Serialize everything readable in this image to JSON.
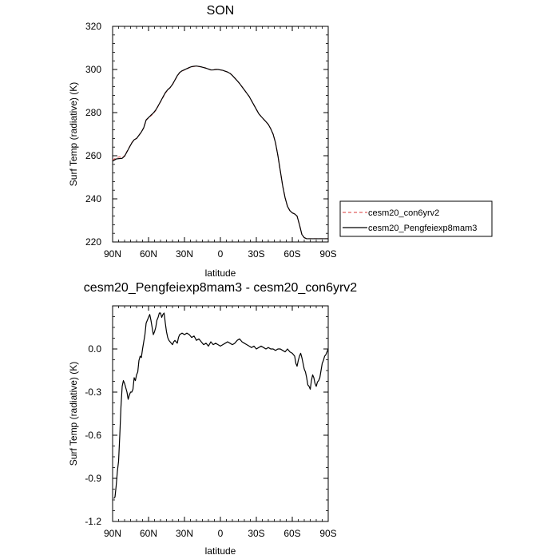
{
  "chart_data": [
    {
      "type": "line",
      "title": "SON",
      "xlabel": "latitude",
      "ylabel": "Surf Temp (radiative) (K)",
      "xlim": [
        90,
        -90
      ],
      "ylim": [
        220,
        320
      ],
      "xtick_values": [
        90,
        60,
        30,
        0,
        -30,
        -60,
        -90
      ],
      "xtick_labels": [
        "90N",
        "60N",
        "30N",
        "0",
        "30S",
        "60S",
        "90S"
      ],
      "ytick_values": [
        220,
        240,
        260,
        280,
        300,
        320
      ],
      "ytick_labels": [
        "220",
        "240",
        "260",
        "280",
        "300",
        "320"
      ],
      "legend": {
        "position": "right"
      },
      "series": [
        {
          "name": "cesm20_con6yrv2",
          "color": "#e06060",
          "style": "dashed",
          "x": [
            90,
            87,
            84,
            82,
            80,
            78,
            76,
            74,
            72,
            70,
            68,
            66,
            64,
            62,
            60,
            58,
            56,
            54,
            52,
            50,
            48,
            46,
            44,
            42,
            40,
            38,
            36,
            34,
            32,
            30,
            28,
            26,
            24,
            22,
            20,
            18,
            16,
            14,
            12,
            10,
            8,
            6,
            4,
            2,
            0,
            -2,
            -4,
            -6,
            -8,
            -10,
            -12,
            -14,
            -16,
            -18,
            -20,
            -22,
            -24,
            -26,
            -28,
            -30,
            -32,
            -34,
            -36,
            -38,
            -40,
            -42,
            -44,
            -46,
            -48,
            -50,
            -52,
            -54,
            -56,
            -58,
            -60,
            -62,
            -64,
            -66,
            -68,
            -70,
            -72,
            -74,
            -76,
            -78,
            -80,
            -82,
            -84,
            -86,
            -88,
            -90
          ],
          "y": [
            258,
            259,
            259.5,
            259,
            260,
            262,
            264,
            266,
            267.5,
            268,
            269.5,
            271,
            273,
            276.5,
            277.5,
            278.5,
            279.5,
            281,
            283,
            285,
            287,
            289,
            290.5,
            291.5,
            293,
            295,
            297,
            298.5,
            299.3,
            299.8,
            300.3,
            300.8,
            301.2,
            301.4,
            301.5,
            301.4,
            301.2,
            300.9,
            300.6,
            300.2,
            299.8,
            299.8,
            300,
            300,
            299.8,
            299.6,
            299.2,
            298.8,
            298.2,
            297.2,
            296,
            294.8,
            293.5,
            292,
            290.5,
            289,
            287.5,
            285.5,
            283.5,
            281.5,
            279.5,
            278.2,
            277,
            275.8,
            274.5,
            272.5,
            270,
            266,
            260,
            253,
            246,
            240.5,
            236.5,
            234.5,
            233.5,
            233,
            232,
            228,
            223.5,
            222,
            221.5,
            221.5,
            221.5,
            221.5,
            221.5,
            221.5,
            221.5,
            221.5,
            221.5,
            221.5
          ]
        },
        {
          "name": "cesm20_Pengfeiexp8mam3",
          "color": "#000000",
          "style": "solid",
          "x": [
            90,
            87,
            84,
            82,
            80,
            78,
            76,
            74,
            72,
            70,
            68,
            66,
            64,
            62,
            60,
            58,
            56,
            54,
            52,
            50,
            48,
            46,
            44,
            42,
            40,
            38,
            36,
            34,
            32,
            30,
            28,
            26,
            24,
            22,
            20,
            18,
            16,
            14,
            12,
            10,
            8,
            6,
            4,
            2,
            0,
            -2,
            -4,
            -6,
            -8,
            -10,
            -12,
            -14,
            -16,
            -18,
            -20,
            -22,
            -24,
            -26,
            -28,
            -30,
            -32,
            -34,
            -36,
            -38,
            -40,
            -42,
            -44,
            -46,
            -48,
            -50,
            -52,
            -54,
            -56,
            -58,
            -60,
            -62,
            -64,
            -66,
            -68,
            -70,
            -72,
            -74,
            -76,
            -78,
            -80,
            -82,
            -84,
            -86,
            -88,
            -90
          ],
          "y": [
            257.5,
            258.5,
            258.7,
            258.8,
            259.8,
            261.8,
            263.9,
            265.9,
            267.4,
            268,
            269.5,
            271,
            273,
            276.6,
            277.7,
            278.8,
            279.8,
            281.2,
            283.1,
            285.1,
            287.2,
            289.2,
            290.6,
            291.6,
            293.1,
            295.1,
            297.1,
            298.6,
            299.4,
            299.9,
            300.4,
            300.9,
            301.3,
            301.5,
            301.6,
            301.4,
            301.2,
            300.9,
            300.6,
            300.2,
            299.8,
            299.8,
            300,
            300,
            299.8,
            299.6,
            299.2,
            298.8,
            298.2,
            297.2,
            296,
            294.8,
            293.5,
            292,
            290.5,
            289,
            287.5,
            285.5,
            283.5,
            281.5,
            279.5,
            278.2,
            277,
            275.8,
            274.5,
            272.5,
            270,
            266,
            260,
            253,
            246,
            240.5,
            236.5,
            234.5,
            233.5,
            233,
            232,
            228,
            223.5,
            222,
            221.5,
            221.5,
            221.5,
            221.5,
            221.5,
            221.5,
            221.5,
            221.5,
            221.5,
            221.5
          ]
        }
      ]
    },
    {
      "type": "line",
      "title": "cesm20_Pengfeiexp8mam3 - cesm20_con6yrv2",
      "xlabel": "latitude",
      "ylabel": "Surf Temp (radiative) (K)",
      "xlim": [
        90,
        -90
      ],
      "ylim": [
        -1.2,
        0.3
      ],
      "xtick_values": [
        90,
        60,
        30,
        0,
        -30,
        -60,
        -90
      ],
      "xtick_labels": [
        "90N",
        "60N",
        "30N",
        "0",
        "30S",
        "60S",
        "90S"
      ],
      "ytick_values": [
        -1.2,
        -0.9,
        -0.6,
        -0.3,
        0.0
      ],
      "ytick_labels": [
        "-1.2",
        "-0.9",
        "-0.6",
        "-0.3",
        "0.0"
      ],
      "series": [
        {
          "color": "#000000",
          "style": "solid",
          "x": [
            89,
            88,
            87,
            86,
            85,
            84,
            83,
            82,
            81,
            80,
            79,
            78,
            77,
            76,
            75,
            74,
            73,
            72,
            71,
            70,
            69,
            68,
            67,
            66,
            65,
            64,
            63,
            62,
            61,
            60,
            59,
            58,
            57,
            56,
            55,
            54,
            53,
            52,
            51,
            50,
            49,
            48,
            47,
            46,
            45,
            44,
            43,
            42,
            41,
            40,
            39,
            38,
            37,
            36,
            35,
            34,
            32,
            30,
            28,
            26,
            24,
            22,
            20,
            18,
            16,
            14,
            12,
            10,
            8,
            6,
            4,
            2,
            0,
            -2,
            -4,
            -6,
            -8,
            -10,
            -12,
            -14,
            -16,
            -18,
            -20,
            -22,
            -24,
            -26,
            -28,
            -30,
            -32,
            -34,
            -36,
            -38,
            -40,
            -42,
            -44,
            -46,
            -48,
            -50,
            -52,
            -54,
            -56,
            -58,
            -60,
            -62,
            -63,
            -64,
            -65,
            -66,
            -67,
            -68,
            -69,
            -70,
            -71,
            -72,
            -73,
            -74,
            -75,
            -76,
            -77,
            -78,
            -79,
            -80,
            -81,
            -82,
            -83,
            -84,
            -85,
            -86,
            -87,
            -88,
            -89,
            -90
          ],
          "y": [
            -1.04,
            -1.03,
            -0.95,
            -0.85,
            -0.78,
            -0.6,
            -0.4,
            -0.26,
            -0.22,
            -0.24,
            -0.27,
            -0.3,
            -0.35,
            -0.32,
            -0.3,
            -0.3,
            -0.28,
            -0.2,
            -0.22,
            -0.18,
            -0.16,
            -0.08,
            -0.05,
            -0.06,
            0.0,
            0.05,
            0.1,
            0.18,
            0.2,
            0.22,
            0.24,
            0.2,
            0.15,
            0.1,
            0.12,
            0.15,
            0.2,
            0.22,
            0.25,
            0.25,
            0.22,
            0.24,
            0.25,
            0.18,
            0.12,
            0.08,
            0.06,
            0.05,
            0.04,
            0.03,
            0.05,
            0.06,
            0.05,
            0.04,
            0.08,
            0.1,
            0.11,
            0.1,
            0.11,
            0.1,
            0.08,
            0.09,
            0.06,
            0.07,
            0.05,
            0.03,
            0.04,
            0.02,
            0.05,
            0.03,
            0.04,
            0.03,
            0.02,
            0.03,
            0.04,
            0.05,
            0.04,
            0.03,
            0.04,
            0.06,
            0.07,
            0.05,
            0.04,
            0.03,
            0.02,
            0.01,
            0.02,
            0.0,
            0.01,
            0.02,
            0.01,
            0.0,
            0.01,
            0.0,
            0.0,
            -0.01,
            0.0,
            0.0,
            -0.01,
            -0.02,
            0.0,
            -0.02,
            -0.03,
            -0.05,
            -0.1,
            -0.12,
            -0.08,
            -0.05,
            -0.03,
            -0.06,
            -0.1,
            -0.14,
            -0.16,
            -0.2,
            -0.25,
            -0.26,
            -0.28,
            -0.22,
            -0.18,
            -0.2,
            -0.24,
            -0.26,
            -0.23,
            -0.22,
            -0.2,
            -0.15,
            -0.1,
            -0.08,
            -0.05,
            -0.04,
            -0.02,
            0.0
          ]
        }
      ]
    }
  ]
}
